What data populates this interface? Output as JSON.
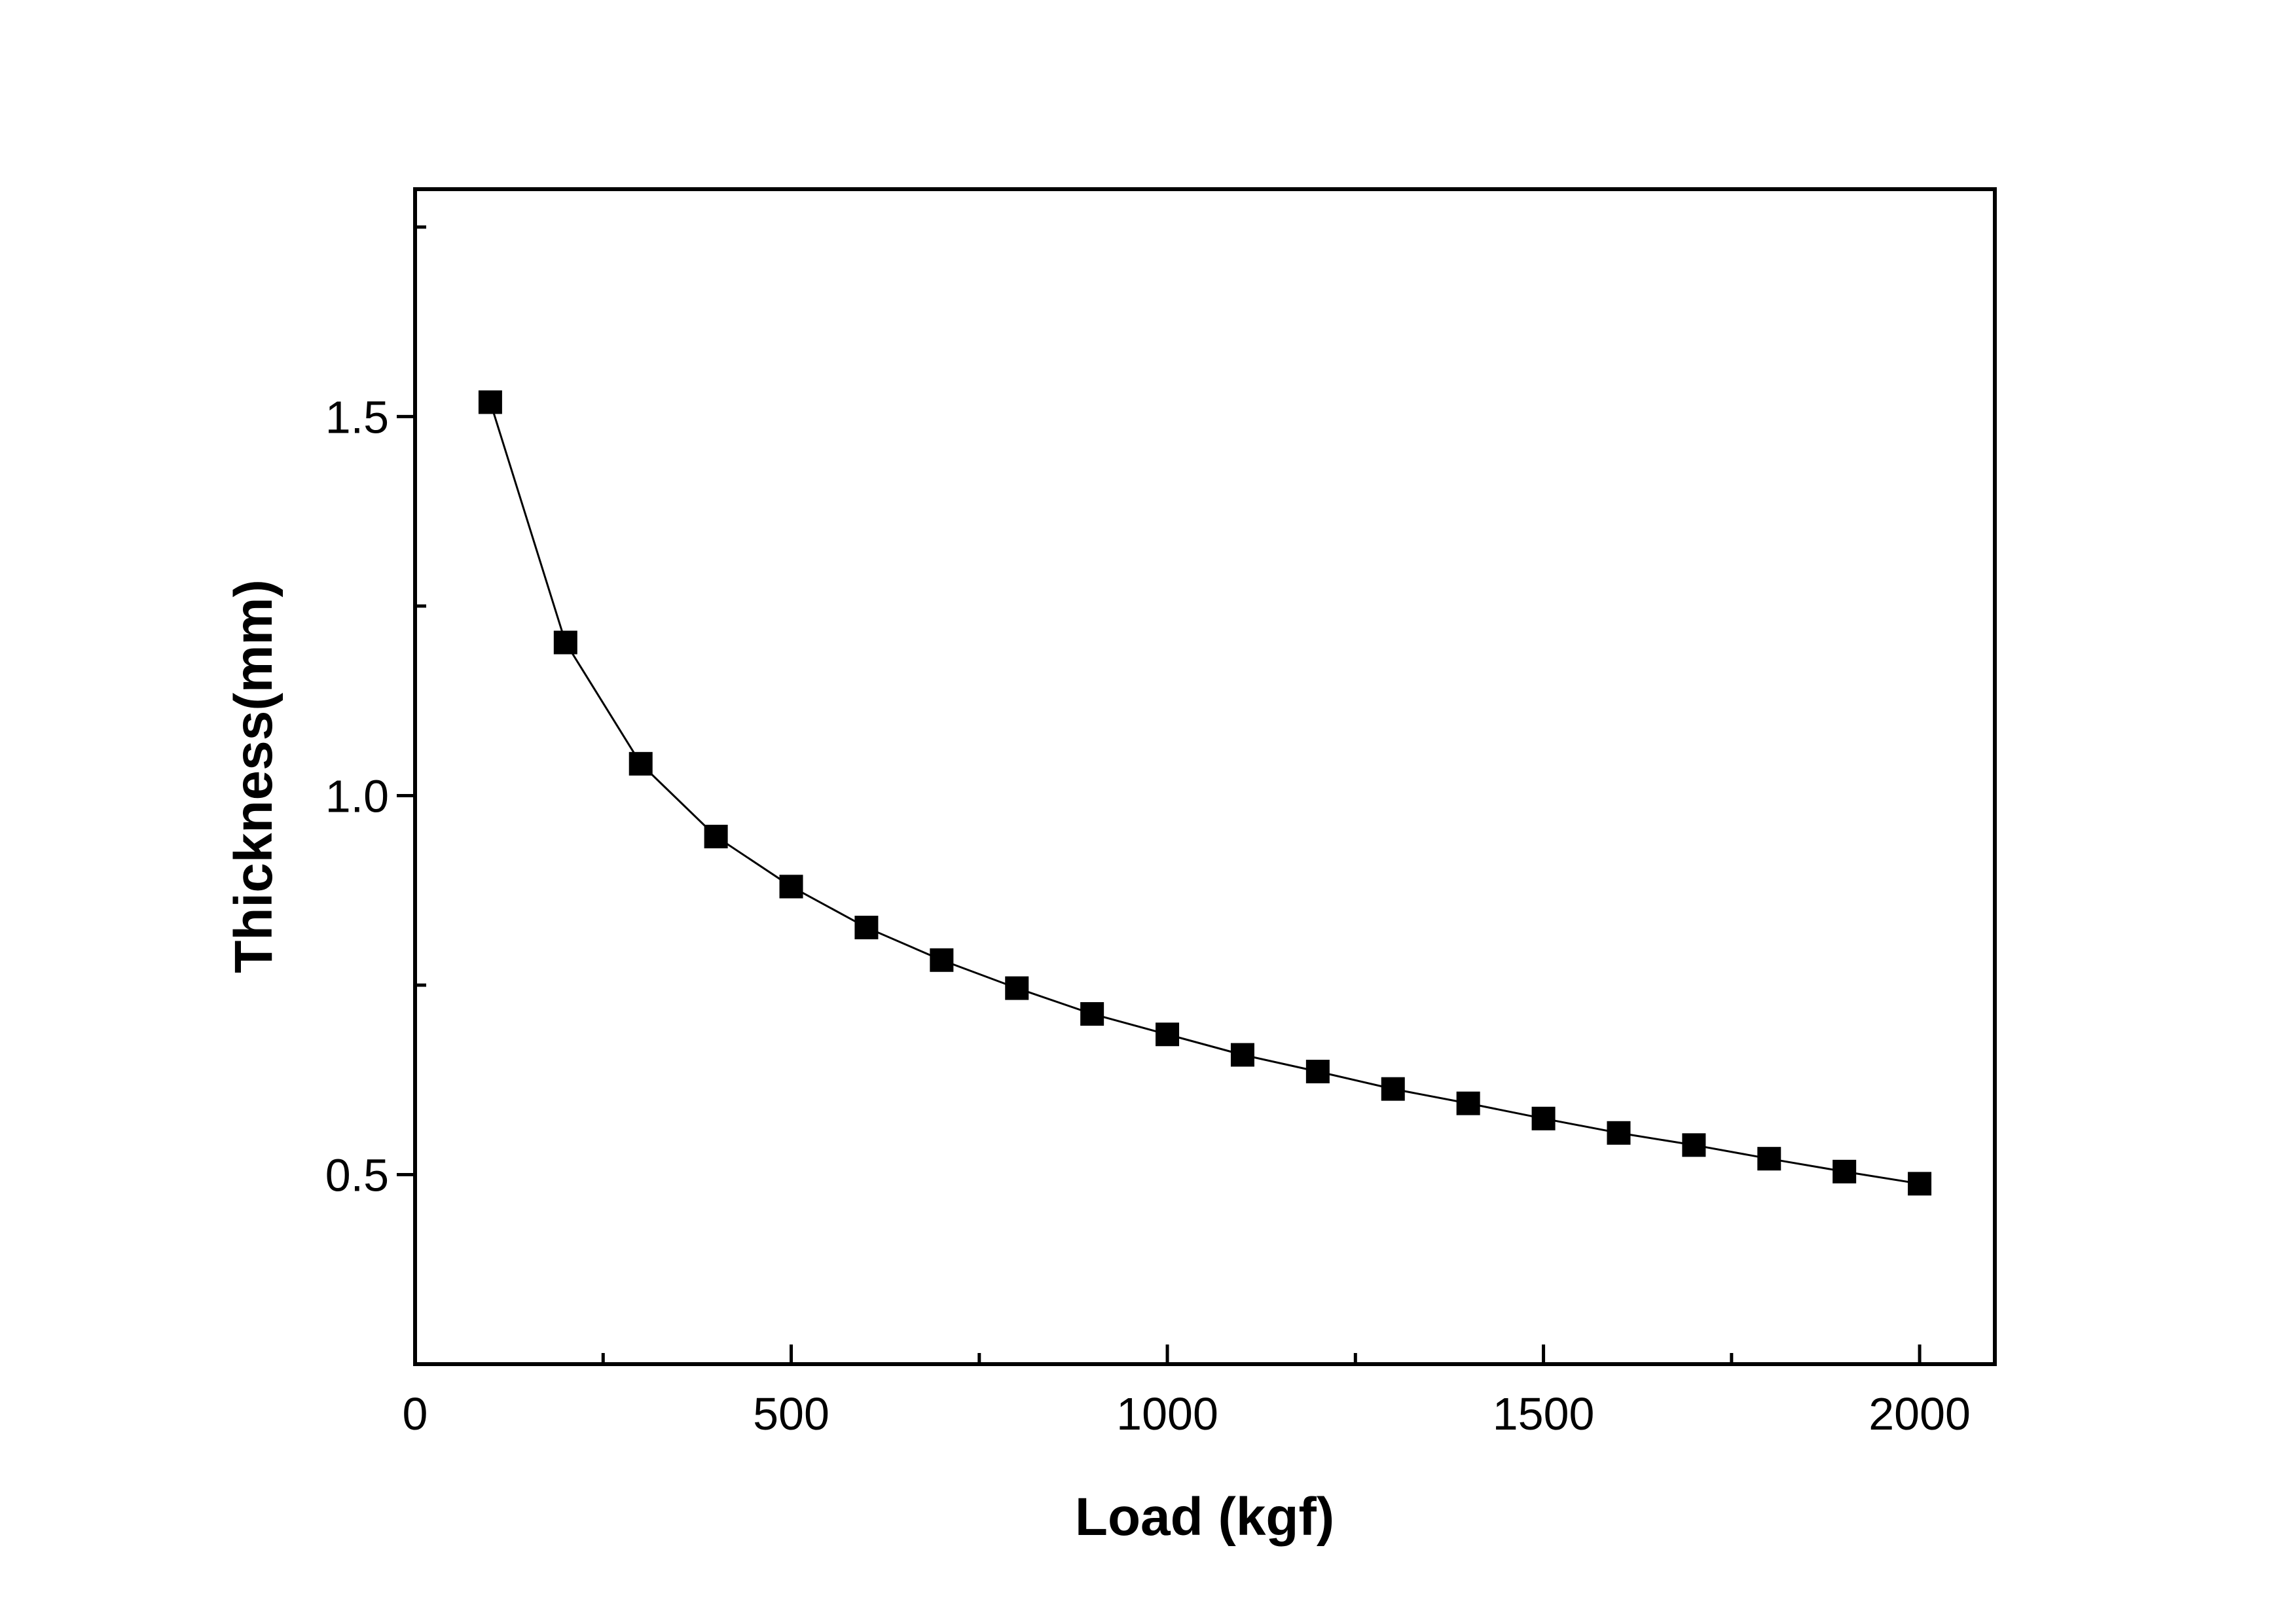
{
  "chart_data": {
    "type": "line",
    "title": "",
    "xlabel": "Load (kgf)",
    "ylabel": "Thickness(mm)",
    "xlim": [
      0,
      2100
    ],
    "ylim": [
      0.25,
      1.8
    ],
    "xticks": [
      0,
      500,
      1000,
      1500,
      2000
    ],
    "xtick_labels": [
      "0",
      "500",
      "1000",
      "1500",
      "2000"
    ],
    "xminor": [
      250,
      750,
      1250,
      1750
    ],
    "yticks": [
      0.5,
      1.0,
      1.5
    ],
    "ytick_labels": [
      "0.5",
      "1.0",
      "1.5"
    ],
    "yminor": [
      0.75,
      1.25,
      1.75
    ],
    "grid": false,
    "marker": "square",
    "color": "#000000",
    "series": [
      {
        "name": "Thickness",
        "x": [
          100,
          200,
          300,
          400,
          500,
          600,
          700,
          800,
          900,
          1000,
          1100,
          1200,
          1300,
          1400,
          1500,
          1600,
          1700,
          1800,
          1900,
          2000
        ],
        "y": [
          1.519,
          1.202,
          1.042,
          0.946,
          0.88,
          0.826,
          0.783,
          0.746,
          0.712,
          0.685,
          0.658,
          0.636,
          0.613,
          0.594,
          0.574,
          0.555,
          0.539,
          0.521,
          0.504,
          0.488
        ]
      }
    ]
  }
}
